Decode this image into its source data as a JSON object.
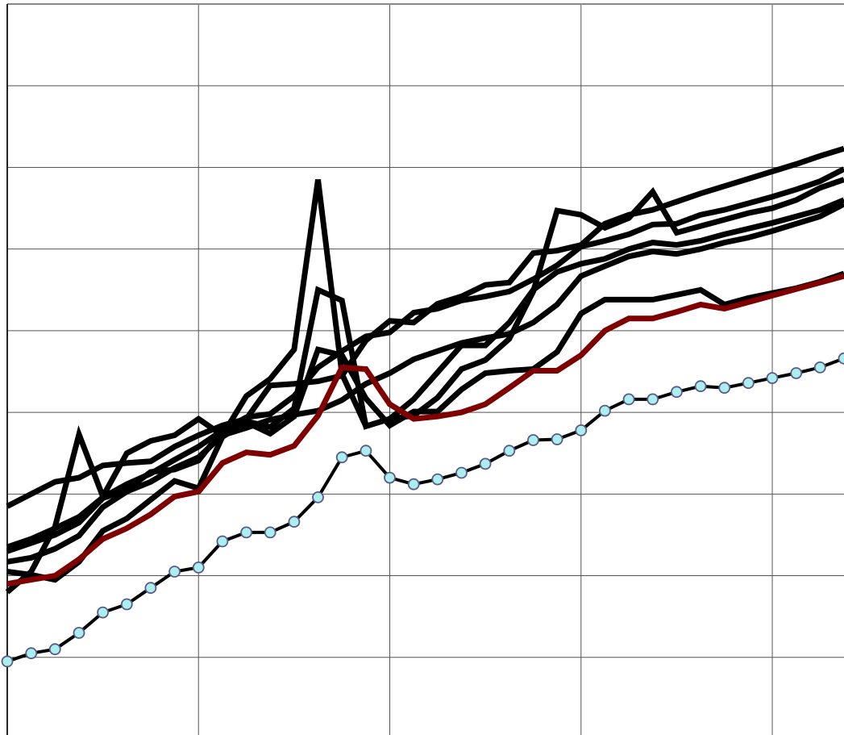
{
  "chart_data": {
    "type": "line",
    "title": "",
    "xlabel": "",
    "ylabel": "",
    "grid": true,
    "legend": "none",
    "xlim": [
      0,
      35
    ],
    "ylim": [
      0,
      9
    ],
    "x": [
      0,
      1,
      2,
      3,
      4,
      5,
      6,
      7,
      8,
      9,
      10,
      11,
      12,
      13,
      14,
      15,
      16,
      17,
      18,
      19,
      20,
      21,
      22,
      23,
      24,
      25,
      26,
      27,
      28,
      29,
      30,
      31,
      32,
      33,
      34,
      35
    ],
    "series": [
      {
        "color": "#000000",
        "values": [
          1.8,
          2.05,
          2.6,
          3.73,
          2.97,
          3.5,
          3.65,
          3.72,
          3.92,
          3.72,
          4.2,
          4.41,
          4.77,
          6.85,
          4.47,
          3.83,
          3.92,
          3.96,
          4.18,
          4.53,
          4.64,
          4.9,
          5.48,
          6.47,
          6.42,
          6.26,
          6.38,
          6.7,
          6.2,
          6.28,
          6.36,
          6.44,
          6.5,
          6.6,
          6.75,
          6.85
        ]
      },
      {
        "color": "#000000",
        "values": [
          2.85,
          3.0,
          3.15,
          3.2,
          3.35,
          3.38,
          3.4,
          3.58,
          3.72,
          3.84,
          3.92,
          4.33,
          4.35,
          4.38,
          4.45,
          4.88,
          5.12,
          5.1,
          5.33,
          5.42,
          5.56,
          5.59,
          5.95,
          5.98,
          6.05,
          6.31,
          6.42,
          6.48,
          6.58,
          6.68,
          6.77,
          6.86,
          6.95,
          7.04,
          7.14,
          7.23
        ]
      },
      {
        "color": "#000000",
        "values": [
          2.35,
          2.45,
          2.58,
          2.72,
          2.96,
          3.12,
          3.25,
          3.42,
          3.58,
          3.78,
          3.94,
          3.98,
          4.2,
          4.55,
          4.75,
          4.93,
          4.98,
          5.22,
          5.27,
          5.37,
          5.42,
          5.48,
          5.63,
          5.8,
          6.03,
          6.1,
          6.18,
          6.3,
          6.31,
          6.42,
          6.48,
          6.56,
          6.64,
          6.73,
          6.83,
          6.98
        ]
      },
      {
        "color": "#000000",
        "values": [
          2.17,
          2.22,
          2.33,
          2.49,
          2.84,
          3.03,
          3.15,
          3.32,
          3.45,
          3.72,
          3.81,
          3.91,
          3.97,
          4.02,
          4.15,
          4.35,
          4.48,
          4.65,
          4.75,
          4.85,
          4.91,
          4.96,
          5.1,
          5.32,
          5.67,
          5.79,
          5.91,
          5.97,
          5.94,
          6.0,
          6.08,
          6.14,
          6.22,
          6.31,
          6.4,
          6.55
        ]
      },
      {
        "color": "#000000",
        "values": [
          2.3,
          2.4,
          2.5,
          2.65,
          2.95,
          3.05,
          3.27,
          3.3,
          3.41,
          3.78,
          3.89,
          3.82,
          4.05,
          5.5,
          5.37,
          3.83,
          3.92,
          4.16,
          4.49,
          4.82,
          4.82,
          5.1,
          5.5,
          5.72,
          5.82,
          5.88,
          6.0,
          6.08,
          6.05,
          6.1,
          6.18,
          6.25,
          6.32,
          6.4,
          6.48,
          6.6
        ]
      },
      {
        "color": "#000000",
        "values": [
          2.05,
          2.01,
          1.95,
          2.17,
          2.55,
          2.7,
          2.93,
          3.16,
          3.07,
          3.7,
          3.88,
          3.74,
          3.95,
          4.77,
          4.7,
          4.17,
          3.84,
          4.01,
          4.01,
          4.28,
          4.48,
          4.51,
          4.53,
          4.74,
          5.21,
          5.38,
          5.38,
          5.38,
          5.44,
          5.5,
          5.32,
          5.4,
          5.46,
          5.52,
          5.6,
          5.7
        ]
      },
      {
        "color": "#7f0000",
        "values": [
          1.9,
          1.95,
          2.0,
          2.2,
          2.45,
          2.58,
          2.75,
          2.97,
          3.03,
          3.38,
          3.51,
          3.48,
          3.59,
          3.96,
          4.55,
          4.53,
          4.1,
          3.92,
          3.95,
          4.0,
          4.1,
          4.3,
          4.51,
          4.51,
          4.7,
          5.0,
          5.15,
          5.15,
          5.23,
          5.32,
          5.27,
          5.35,
          5.43,
          5.51,
          5.59,
          5.67
        ]
      },
      {
        "color": "#000000",
        "marker_fill": "#aaeeee",
        "values": [
          0.95,
          1.05,
          1.1,
          1.3,
          1.55,
          1.65,
          1.85,
          2.05,
          2.1,
          2.42,
          2.53,
          2.53,
          2.66,
          2.96,
          3.45,
          3.53,
          3.2,
          3.12,
          3.18,
          3.26,
          3.37,
          3.53,
          3.66,
          3.67,
          3.78,
          4.02,
          4.16,
          4.16,
          4.25,
          4.32,
          4.3,
          4.36,
          4.42,
          4.48,
          4.55,
          4.66
        ]
      }
    ]
  }
}
